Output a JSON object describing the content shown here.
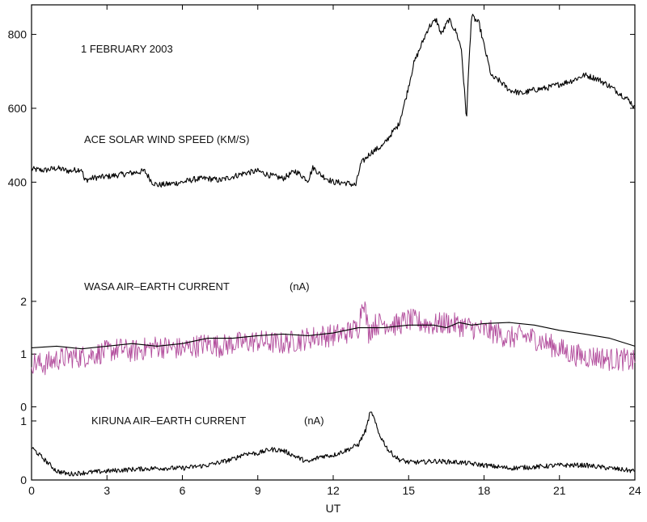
{
  "chart_data": [
    {
      "type": "line",
      "panel": "ace",
      "date_label": "1 FEBRUARY 2003",
      "label": "ACE SOLAR WIND SPEED (KM/S)",
      "unit": "",
      "ylim": [
        320,
        880
      ],
      "yticks": [
        400,
        600,
        800
      ],
      "series": [
        {
          "color": "#000000",
          "x": [
            0,
            0.5,
            1,
            1.5,
            2,
            2.1,
            2.5,
            3,
            3.5,
            4,
            4.5,
            4.8,
            5,
            5.5,
            6,
            6.5,
            7,
            7.5,
            8,
            8.5,
            9,
            9.5,
            10,
            10.5,
            11,
            11.2,
            11.5,
            12,
            12.5,
            12.9,
            13.1,
            13.5,
            14,
            14.3,
            14.6,
            14.9,
            15.2,
            15.5,
            15.8,
            16.1,
            16.3,
            16.6,
            16.9,
            17.1,
            17.3,
            17.4,
            17.5,
            17.8,
            18,
            18.3,
            18.6,
            19,
            19.5,
            20,
            20.5,
            21,
            21.5,
            22,
            22.5,
            23,
            23.5,
            23.8,
            24
          ],
          "values": [
            435,
            432,
            438,
            430,
            436,
            405,
            412,
            415,
            420,
            425,
            430,
            400,
            392,
            395,
            400,
            408,
            410,
            405,
            415,
            425,
            430,
            418,
            410,
            430,
            405,
            440,
            420,
            400,
            398,
            392,
            450,
            480,
            500,
            530,
            555,
            630,
            720,
            770,
            820,
            840,
            800,
            840,
            805,
            760,
            570,
            720,
            850,
            830,
            770,
            685,
            675,
            650,
            640,
            650,
            655,
            665,
            675,
            690,
            680,
            660,
            635,
            620,
            600
          ]
        }
      ]
    },
    {
      "type": "line",
      "panel": "wasa",
      "label": "WASA AIR–EARTH CURRENT",
      "unit": "(nA)",
      "ylim": [
        -0.1,
        3.7
      ],
      "yticks": [
        0,
        1,
        2
      ],
      "series": [
        {
          "color": "#b24c9c",
          "x": [
            0,
            0.5,
            1,
            1.5,
            2,
            2.5,
            3,
            3.5,
            4,
            4.5,
            5,
            5.5,
            6,
            6.5,
            7,
            7.5,
            8,
            8.5,
            9,
            9.5,
            10,
            10.5,
            11,
            11.5,
            12,
            12.5,
            13,
            13.2,
            13.4,
            13.6,
            14,
            14.5,
            15,
            15.5,
            16,
            16.5,
            17,
            17.5,
            18,
            18.5,
            19,
            19.5,
            20,
            20.5,
            21,
            21.5,
            22,
            22.5,
            23,
            23.5,
            24
          ],
          "values": [
            0.85,
            0.8,
            0.9,
            0.95,
            0.95,
            1.0,
            1.05,
            1.1,
            1.05,
            1.1,
            1.15,
            1.12,
            1.1,
            1.15,
            1.2,
            1.15,
            1.2,
            1.22,
            1.25,
            1.22,
            1.2,
            1.25,
            1.3,
            1.35,
            1.35,
            1.4,
            1.5,
            2.1,
            1.4,
            1.55,
            1.6,
            1.55,
            1.65,
            1.6,
            1.55,
            1.6,
            1.55,
            1.5,
            1.45,
            1.4,
            1.3,
            1.35,
            1.3,
            1.2,
            1.1,
            1.0,
            0.95,
            0.95,
            0.9,
            0.9,
            0.85
          ]
        },
        {
          "color": "#000000",
          "x": [
            0,
            1,
            2,
            3,
            4,
            5,
            6,
            7,
            8,
            9,
            10,
            11,
            12,
            13,
            14,
            15,
            16,
            16.5,
            17,
            17.5,
            18,
            19,
            20,
            21,
            22,
            23,
            24
          ],
          "values": [
            1.12,
            1.15,
            1.1,
            1.15,
            1.2,
            1.15,
            1.2,
            1.3,
            1.3,
            1.35,
            1.38,
            1.35,
            1.4,
            1.5,
            1.5,
            1.55,
            1.55,
            1.5,
            1.6,
            1.55,
            1.58,
            1.6,
            1.55,
            1.45,
            1.38,
            1.3,
            1.15
          ]
        }
      ]
    },
    {
      "type": "line",
      "panel": "kiruna",
      "label": "KIRUNA AIR–EARTH CURRENT",
      "unit": "(nA)",
      "ylim": [
        0,
        1.15
      ],
      "yticks": [
        0,
        1
      ],
      "series": [
        {
          "color": "#000000",
          "x": [
            0,
            0.5,
            1,
            1.5,
            2,
            3,
            4,
            5,
            6,
            7,
            8,
            8.5,
            9,
            9.5,
            10,
            10.5,
            11,
            11.5,
            12,
            12.5,
            13,
            13.3,
            13.5,
            13.8,
            14.2,
            14.6,
            15,
            15.5,
            16,
            17,
            18,
            19,
            20,
            21,
            22,
            23,
            24
          ],
          "values": [
            0.55,
            0.35,
            0.15,
            0.1,
            0.12,
            0.15,
            0.18,
            0.2,
            0.2,
            0.25,
            0.35,
            0.45,
            0.45,
            0.52,
            0.5,
            0.4,
            0.3,
            0.4,
            0.42,
            0.5,
            0.6,
            0.85,
            1.2,
            0.8,
            0.5,
            0.35,
            0.3,
            0.3,
            0.32,
            0.3,
            0.25,
            0.2,
            0.22,
            0.25,
            0.25,
            0.2,
            0.15
          ]
        }
      ]
    }
  ],
  "x_axis": {
    "label": "UT",
    "range": [
      0,
      24
    ],
    "ticks": [
      0,
      3,
      6,
      9,
      12,
      15,
      18,
      21,
      24
    ]
  }
}
